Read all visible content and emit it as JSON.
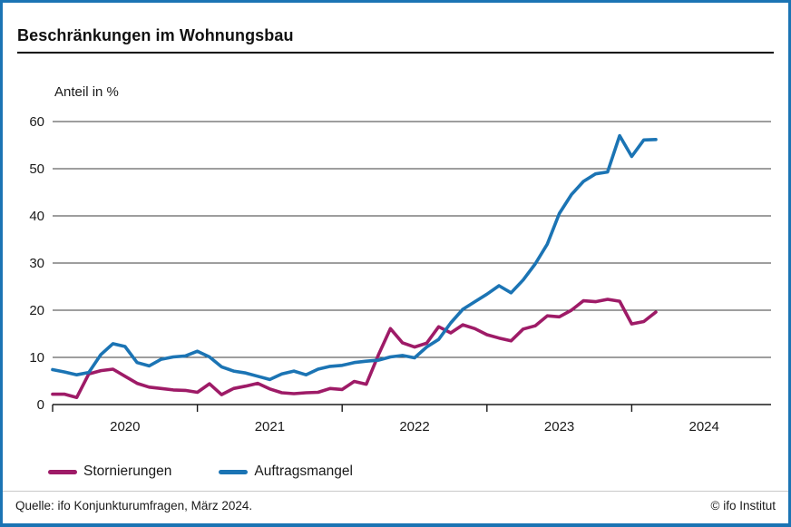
{
  "header": {
    "title": "Beschränkungen im Wohnungsbau"
  },
  "footer": {
    "source": "Quelle: ifo Konjunkturumfragen, März 2024.",
    "copyright": "© ifo Institut"
  },
  "colors": {
    "frame_border": "#1b74b4",
    "gridline": "#3d3d3d",
    "axis": "#1a1a1a",
    "stornierungen": "#9e1b67",
    "auftragsmangel": "#1b74b4"
  },
  "chart_data": {
    "type": "line",
    "title": "Beschränkungen im Wohnungsbau",
    "ylabel": "Anteil in %",
    "xlabel": "",
    "ylim": [
      0,
      60
    ],
    "ytick_step": 10,
    "ytick_labels": [
      "0",
      "10",
      "20",
      "30",
      "40",
      "50",
      "60"
    ],
    "grid": true,
    "legend_position": "bottom",
    "x_frequency": "monthly",
    "x_start": "2020-01",
    "x_end": "2024-03",
    "xtick_labels": [
      "2020",
      "2021",
      "2022",
      "2023",
      "2024"
    ],
    "series": [
      {
        "name": "Stornierungen",
        "color": "#9e1b67",
        "values": [
          2.2,
          2.2,
          1.5,
          6.5,
          7.2,
          7.5,
          6.0,
          4.5,
          3.7,
          3.4,
          3.1,
          3.0,
          2.6,
          4.4,
          2.1,
          3.4,
          3.9,
          4.5,
          3.3,
          2.5,
          2.3,
          2.5,
          2.6,
          3.4,
          3.2,
          4.9,
          4.3,
          10.5,
          16.1,
          13.1,
          12.2,
          13.0,
          16.5,
          15.2,
          16.9,
          16.1,
          14.8,
          14.1,
          13.5,
          16.0,
          16.7,
          18.8,
          18.6,
          20.0,
          22.0,
          21.8,
          22.3,
          21.9,
          17.1,
          17.6,
          19.6
        ]
      },
      {
        "name": "Auftragsmangel",
        "color": "#1b74b4",
        "values": [
          7.4,
          6.9,
          6.3,
          6.8,
          10.6,
          12.9,
          12.3,
          8.9,
          8.2,
          9.6,
          10.1,
          10.3,
          11.3,
          10.1,
          8.0,
          7.1,
          6.7,
          6.0,
          5.3,
          6.5,
          7.1,
          6.3,
          7.5,
          8.1,
          8.3,
          8.9,
          9.2,
          9.4,
          10.1,
          10.4,
          9.9,
          12.2,
          13.8,
          17.3,
          20.2,
          21.8,
          23.4,
          25.2,
          23.7,
          26.4,
          29.8,
          34.0,
          40.5,
          44.5,
          47.3,
          48.9,
          49.3,
          57.0,
          52.6,
          56.1,
          56.2
        ]
      }
    ]
  }
}
